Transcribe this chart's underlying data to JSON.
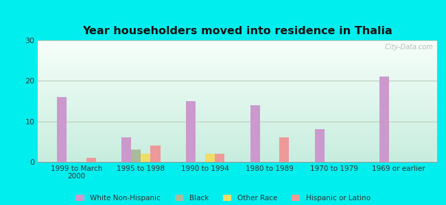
{
  "title": "Year householders moved into residence in Thalia",
  "categories": [
    "1999 to March\n2000",
    "1995 to 1998",
    "1990 to 1994",
    "1980 to 1989",
    "1970 to 1979",
    "1969 or earlier"
  ],
  "series": {
    "White Non-Hispanic": [
      16,
      6,
      15,
      14,
      8,
      21
    ],
    "Black": [
      0,
      3,
      0,
      0,
      0,
      0
    ],
    "Other Race": [
      0,
      2,
      2,
      0,
      0,
      0
    ],
    "Hispanic or Latino": [
      1,
      4,
      2,
      6,
      0,
      0
    ]
  },
  "colors": {
    "White Non-Hispanic": "#cc99cc",
    "Black": "#aabb99",
    "Other Race": "#eedd66",
    "Hispanic or Latino": "#ee9999"
  },
  "ylim": [
    0,
    30
  ],
  "yticks": [
    0,
    10,
    20,
    30
  ],
  "bar_width": 0.15,
  "background_outer": "#00EEEE",
  "grid_color": "#bbccbb",
  "watermark": "  City-Data.com"
}
